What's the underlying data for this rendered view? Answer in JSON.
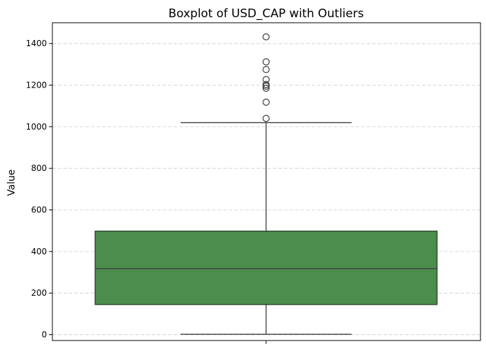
{
  "chart_data": {
    "type": "boxplot",
    "title": "Boxplot of USD_CAP with Outliers",
    "xlabel": "",
    "ylabel": "Value",
    "ylim": [
      -28,
      1500
    ],
    "yticks": [
      0,
      200,
      400,
      600,
      800,
      1000,
      1200,
      1400
    ],
    "grid": "y-dashed",
    "colors": {
      "box": "#4c8c4c",
      "edge": "#3a3a3a",
      "grid": "#cccccc"
    },
    "box": {
      "whisker_low": 2,
      "q1": 145,
      "median": 318,
      "q3": 498,
      "whisker_high": 1020
    },
    "outliers": [
      1040,
      1118,
      1185,
      1195,
      1203,
      1227,
      1275,
      1312,
      1432
    ]
  }
}
